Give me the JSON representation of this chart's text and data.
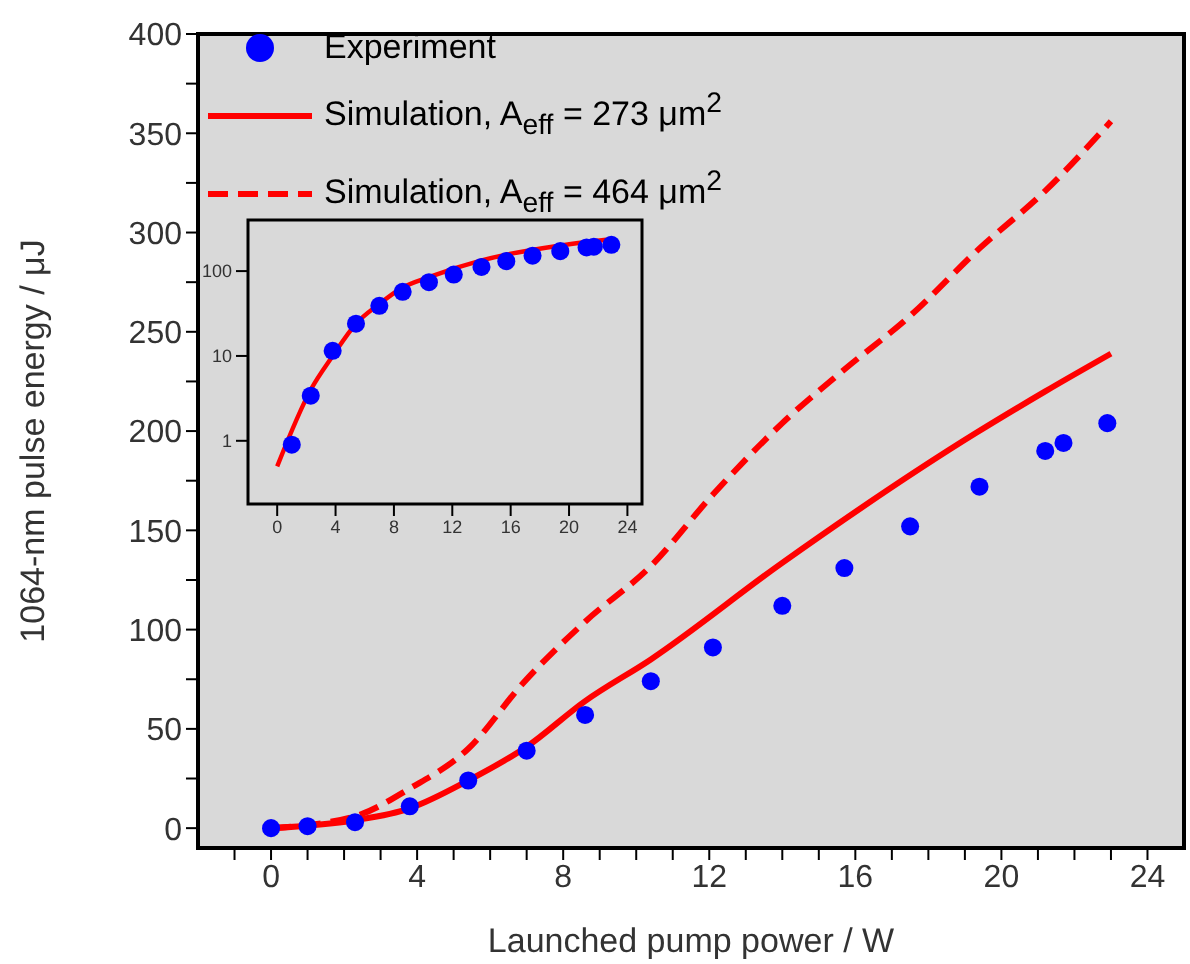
{
  "chart_data": [
    {
      "type": "line",
      "xlabel": "Launched pump power / W",
      "ylabel": "1064-nm pulse energy / μJ",
      "xlim": [
        -2,
        25
      ],
      "ylim": [
        -10,
        400
      ],
      "xticks": [
        {
          "value": -1,
          "label": null
        },
        0,
        {
          "value": 1,
          "label": null
        },
        {
          "value": 2,
          "label": null
        },
        {
          "value": 3,
          "label": null
        },
        4,
        {
          "value": 5,
          "label": null
        },
        {
          "value": 6,
          "label": null
        },
        {
          "value": 7,
          "label": null
        },
        8,
        {
          "value": 9,
          "label": null
        },
        {
          "value": 10,
          "label": null
        },
        {
          "value": 11,
          "label": null
        },
        12,
        {
          "value": 13,
          "label": null
        },
        {
          "value": 14,
          "label": null
        },
        {
          "value": 15,
          "label": null
        },
        16,
        {
          "value": 17,
          "label": null
        },
        {
          "value": 18,
          "label": null
        },
        {
          "value": 19,
          "label": null
        },
        20,
        {
          "value": 21,
          "label": null
        },
        {
          "value": 22,
          "label": null
        },
        {
          "value": 23,
          "label": null
        },
        24
      ],
      "yticks": [
        0,
        {
          "value": 25,
          "label": null
        },
        50,
        {
          "value": 75,
          "label": null
        },
        100,
        {
          "value": 125,
          "label": null
        },
        150,
        {
          "value": 175,
          "label": null
        },
        200,
        {
          "value": 225,
          "label": null
        },
        250,
        {
          "value": 275,
          "label": null
        },
        300,
        {
          "value": 325,
          "label": null
        },
        350,
        {
          "value": 375,
          "label": null
        },
        400
      ],
      "grid": false,
      "legend": "top left",
      "series": [
        {
          "name": "Experiment",
          "type": "scatter",
          "marker": "circle",
          "color": "#0000ff",
          "x": [
            0,
            1.0,
            2.3,
            3.8,
            5.4,
            7.0,
            8.6,
            10.4,
            12.1,
            14.0,
            15.7,
            17.5,
            19.4,
            21.2,
            21.7,
            22.9
          ],
          "values": [
            0,
            1,
            3,
            11,
            24,
            39,
            57,
            74,
            91,
            112,
            131,
            152,
            172,
            190,
            194,
            204
          ]
        },
        {
          "name": "Simulation, A$_{eff}$ = 273 μm$^{2}$",
          "line_style": "solid",
          "color": "#ff0000",
          "x": [
            0,
            2.3,
            3.8,
            5.4,
            7.0,
            8.6,
            10.4,
            13.95,
            19.3,
            21.2,
            23.0
          ],
          "values": [
            0,
            4,
            10,
            24,
            41,
            64,
            85,
            133,
            199,
            220,
            239
          ]
        },
        {
          "name": "Simulation, A$_{eff}$ = 464 μm$^{2}$",
          "line_style": "dashed",
          "color": "#ff0000",
          "x": [
            0,
            2.3,
            3.8,
            5.4,
            6.9,
            8.6,
            10.4,
            12.1,
            14.0,
            15.7,
            17.5,
            19.4,
            21.2,
            23.0
          ],
          "values": [
            0,
            6,
            20,
            40,
            73,
            104,
            132,
            168,
            204,
            231,
            258,
            292,
            321,
            356
          ]
        }
      ]
    },
    {
      "type": "line",
      "log": "y",
      "xlim": [
        -2,
        25
      ],
      "ylim": [
        0.18,
        400
      ],
      "xticks": [
        0,
        4,
        8,
        12,
        16,
        20,
        24
      ],
      "yticks": [
        1,
        10,
        100
      ],
      "grid": false,
      "legend": false,
      "series": [
        {
          "type": "scatter",
          "marker": "circle",
          "color": "#0000ff",
          "x": [
            1.0,
            2.3,
            3.8,
            5.4,
            7.0,
            8.6,
            10.4,
            12.1,
            14.0,
            15.7,
            17.5,
            19.4,
            21.2,
            21.7,
            22.9
          ],
          "values": [
            0.9,
            3.4,
            11.5,
            24,
            39,
            57,
            74,
            91,
            112,
            131,
            152,
            172,
            190,
            194,
            204
          ]
        },
        {
          "line_style": "solid",
          "color": "#ff0000",
          "x": [
            0,
            2.3,
            3.8,
            5.4,
            7.0,
            8.6,
            10.4,
            13.95,
            19.3,
            21.2,
            23.0
          ],
          "values": [
            0.5,
            4,
            10,
            24,
            41,
            64,
            85,
            133,
            199,
            220,
            239
          ]
        }
      ]
    }
  ]
}
